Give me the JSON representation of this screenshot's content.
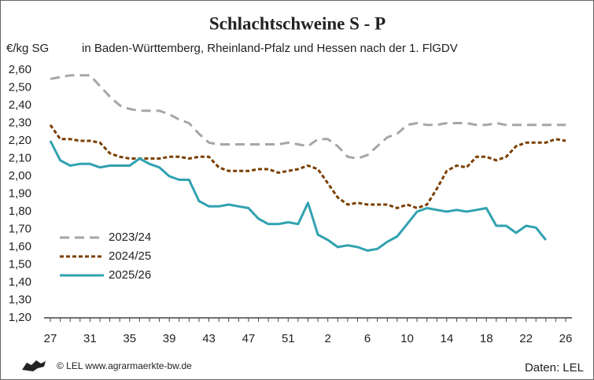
{
  "chart_data": {
    "type": "line",
    "title": "Schlachtschweine S - P",
    "subtitle": "in Baden-Württemberg, Rheinland-Pfalz und Hessen nach der 1. FlGDV",
    "y_label": "€/kg SG",
    "source": "Daten: LEL",
    "copyright": "© LEL www.agrarmaerkte-bw.de",
    "categories": [
      "27",
      null,
      null,
      null,
      "31",
      null,
      null,
      null,
      "35",
      null,
      null,
      null,
      "39",
      null,
      null,
      null,
      "43",
      null,
      null,
      null,
      "47",
      null,
      null,
      null,
      "51",
      null,
      null,
      null,
      "2",
      null,
      null,
      null,
      "6",
      null,
      null,
      null,
      "10",
      null,
      null,
      null,
      "14",
      null,
      null,
      null,
      "18",
      null,
      null,
      null,
      "22",
      null,
      null,
      null,
      "26"
    ],
    "ylim": [
      1.2,
      2.6
    ],
    "yticks": [
      {
        "value": 1.2,
        "label": "1,20"
      },
      {
        "value": 1.3,
        "label": "1,30"
      },
      {
        "value": 1.4,
        "label": "1,40"
      },
      {
        "value": 1.5,
        "label": "1,50"
      },
      {
        "value": 1.6,
        "label": "1,60"
      },
      {
        "value": 1.7,
        "label": "1,70"
      },
      {
        "value": 1.8,
        "label": "1,80"
      },
      {
        "value": 1.9,
        "label": "1,90"
      },
      {
        "value": 2.0,
        "label": "2,00"
      },
      {
        "value": 2.1,
        "label": "2,10"
      },
      {
        "value": 2.2,
        "label": "2,20"
      },
      {
        "value": 2.3,
        "label": "2,30"
      },
      {
        "value": 2.4,
        "label": "2,40"
      },
      {
        "value": 2.5,
        "label": "2,50"
      },
      {
        "value": 2.6,
        "label": "2,60"
      }
    ],
    "grid": false,
    "legend": "lower left",
    "series": [
      {
        "name": "2023/24",
        "color": "#a6a6a6",
        "dash": "dashed",
        "values": [
          2.55,
          2.56,
          2.57,
          2.57,
          2.57,
          2.51,
          2.45,
          2.4,
          2.38,
          2.37,
          2.37,
          2.37,
          2.35,
          2.32,
          2.3,
          2.24,
          2.19,
          2.18,
          2.18,
          2.18,
          2.18,
          2.18,
          2.18,
          2.18,
          2.19,
          2.18,
          2.17,
          2.21,
          2.21,
          2.17,
          2.11,
          2.1,
          2.12,
          2.17,
          2.22,
          2.24,
          2.29,
          2.3,
          2.29,
          2.29,
          2.3,
          2.3,
          2.3,
          2.29,
          2.29,
          2.3,
          2.29,
          2.29,
          2.29,
          2.29,
          2.29,
          2.29,
          2.29
        ]
      },
      {
        "name": "2024/25",
        "color": "#7b3f00",
        "dash": "dotted",
        "values": [
          2.29,
          2.21,
          2.21,
          2.2,
          2.2,
          2.19,
          2.13,
          2.11,
          2.1,
          2.1,
          2.1,
          2.1,
          2.11,
          2.11,
          2.1,
          2.11,
          2.11,
          2.05,
          2.03,
          2.03,
          2.03,
          2.04,
          2.04,
          2.02,
          2.03,
          2.04,
          2.06,
          2.04,
          1.96,
          1.88,
          1.84,
          1.85,
          1.84,
          1.84,
          1.84,
          1.82,
          1.84,
          1.82,
          1.84,
          1.93,
          2.03,
          2.06,
          2.05,
          2.11,
          2.11,
          2.09,
          2.11,
          2.17,
          2.19,
          2.19,
          2.19,
          2.21,
          2.2
        ]
      },
      {
        "name": "2025/26",
        "color": "#31a2b0",
        "dash": "solid",
        "values": [
          2.2,
          2.09,
          2.06,
          2.07,
          2.07,
          2.05,
          2.06,
          2.06,
          2.06,
          2.1,
          2.07,
          2.05,
          2.0,
          1.98,
          1.98,
          1.86,
          1.83,
          1.83,
          1.84,
          1.83,
          1.82,
          1.76,
          1.73,
          1.73,
          1.74,
          1.73,
          1.85,
          1.67,
          1.64,
          1.6,
          1.61,
          1.6,
          1.58,
          1.59,
          1.63,
          1.66,
          1.73,
          1.8,
          1.82,
          1.81,
          1.8,
          1.81,
          1.8,
          1.81,
          1.82,
          1.72,
          1.72,
          1.68,
          1.72,
          1.71,
          1.64,
          null,
          null
        ]
      }
    ]
  }
}
